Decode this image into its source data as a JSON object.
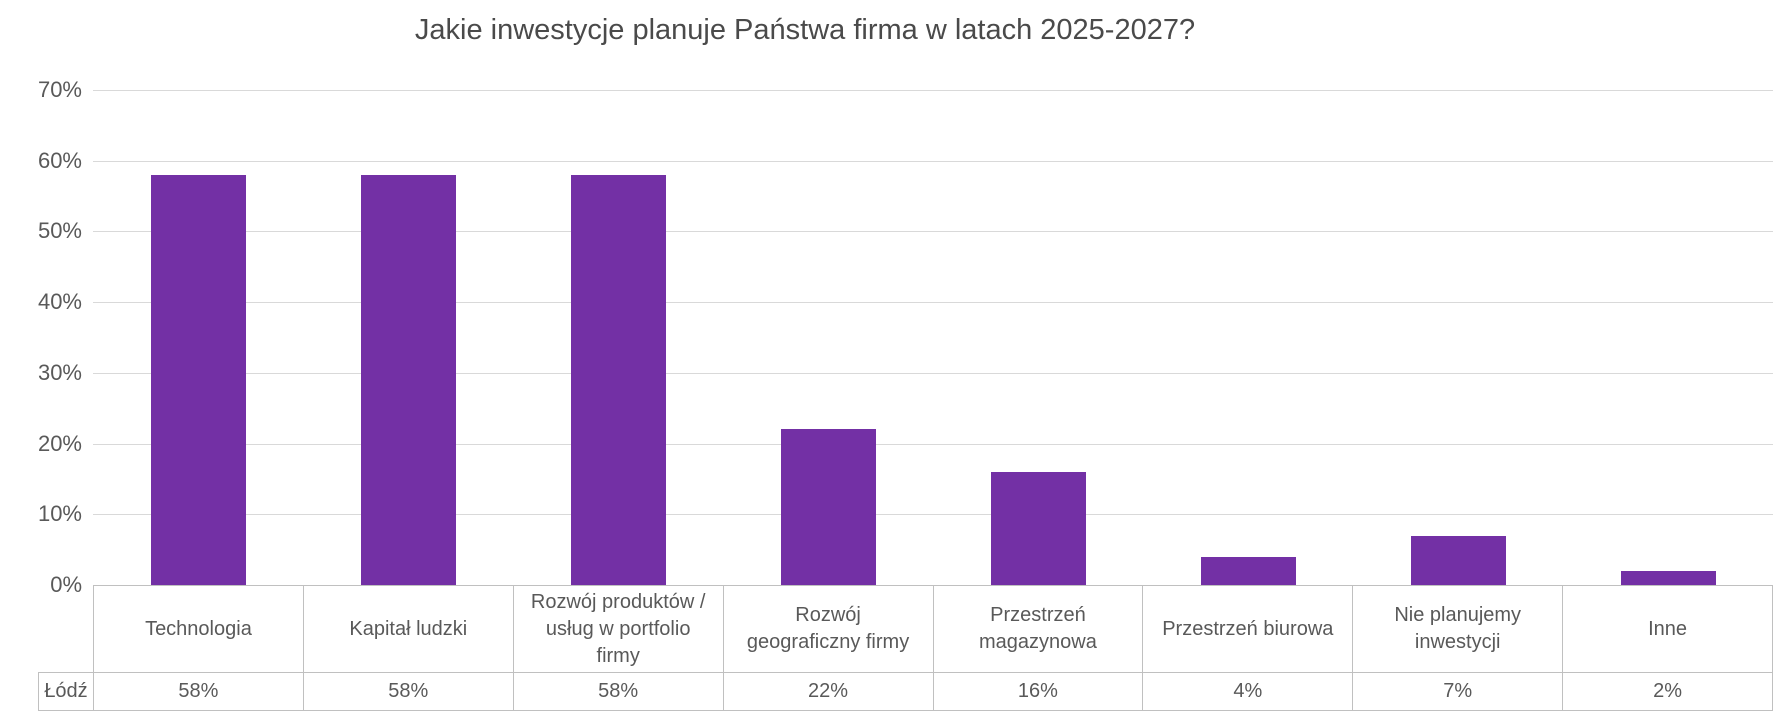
{
  "chart_data": {
    "type": "bar",
    "title": "Jakie inwestycje planuje Państwa firma w latach 2025-2027?",
    "categories": [
      "Technologia",
      "Kapitał ludzki",
      "Rozwój produktów / usług w portfolio firmy",
      "Rozwój geograficzny firmy",
      "Przestrzeń magazynowa",
      "Przestrzeń biurowa",
      "Nie planujemy inwestycji",
      "Inne"
    ],
    "series": [
      {
        "name": "Łódź",
        "values": [
          58,
          58,
          58,
          22,
          16,
          4,
          7,
          2
        ]
      }
    ],
    "value_labels": [
      "58%",
      "58%",
      "58%",
      "22%",
      "16%",
      "4%",
      "7%",
      "2%"
    ],
    "xlabel": "",
    "ylabel": "",
    "ylim": [
      0,
      70
    ],
    "ytick_values": [
      0,
      10,
      20,
      30,
      40,
      50,
      60,
      70
    ],
    "ytick_labels": [
      "0%",
      "10%",
      "20%",
      "30%",
      "40%",
      "50%",
      "60%",
      "70%"
    ],
    "grid": "horizontal",
    "legend_position": "none",
    "data_table": true,
    "colors": {
      "bar": "#7330A5",
      "gridline": "#D9D9D9",
      "table_border": "#C0C0C0",
      "axis_text": "#595959",
      "title_text": "#4A4A4A",
      "background": "#FFFFFF"
    }
  }
}
